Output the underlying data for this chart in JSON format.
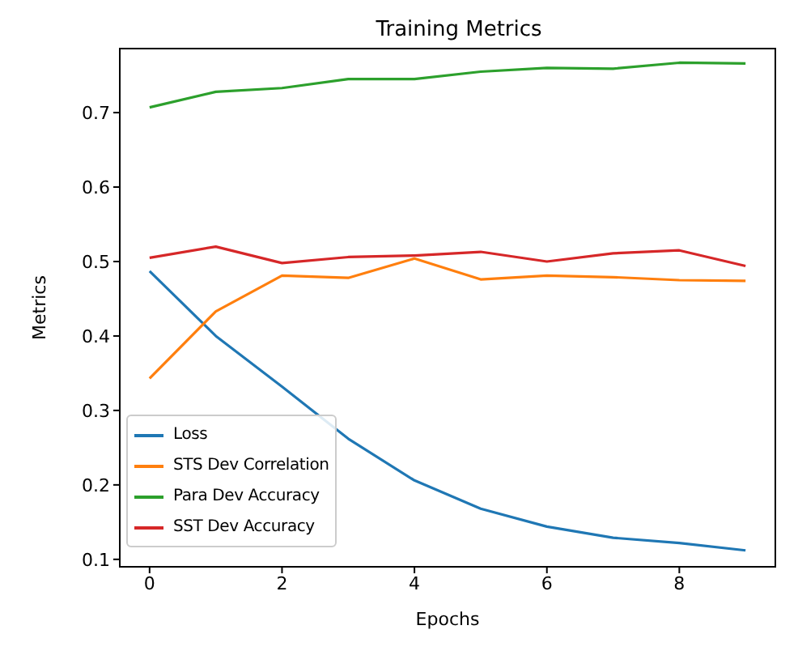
{
  "chart_data": {
    "type": "line",
    "title": "Training Metrics",
    "xlabel": "Epochs",
    "ylabel": "Metrics",
    "x": [
      0,
      1,
      2,
      3,
      4,
      5,
      6,
      7,
      8,
      9
    ],
    "series": [
      {
        "name": "Loss",
        "color": "#1f77b4",
        "values": [
          0.487,
          0.4,
          0.332,
          0.262,
          0.206,
          0.168,
          0.144,
          0.129,
          0.122,
          0.112
        ]
      },
      {
        "name": "STS Dev Correlation",
        "color": "#ff7f0e",
        "values": [
          0.343,
          0.433,
          0.481,
          0.478,
          0.504,
          0.476,
          0.481,
          0.479,
          0.475,
          0.474
        ]
      },
      {
        "name": "Para Dev Accuracy",
        "color": "#2ca02c",
        "values": [
          0.707,
          0.728,
          0.733,
          0.745,
          0.745,
          0.755,
          0.76,
          0.759,
          0.767,
          0.766
        ]
      },
      {
        "name": "SST Dev Accuracy",
        "color": "#d62728",
        "values": [
          0.505,
          0.52,
          0.498,
          0.506,
          0.508,
          0.513,
          0.5,
          0.511,
          0.515,
          0.494
        ]
      }
    ],
    "xlim": [
      -0.45,
      9.45
    ],
    "xticks": [
      0,
      2,
      4,
      6,
      8
    ],
    "ylim": [
      0.09,
      0.786
    ],
    "yticks": [
      0.1,
      0.2,
      0.3,
      0.4,
      0.5,
      0.6,
      0.7
    ],
    "grid": false,
    "legend": "bottom left",
    "marker": "none",
    "line_style": "solid"
  }
}
